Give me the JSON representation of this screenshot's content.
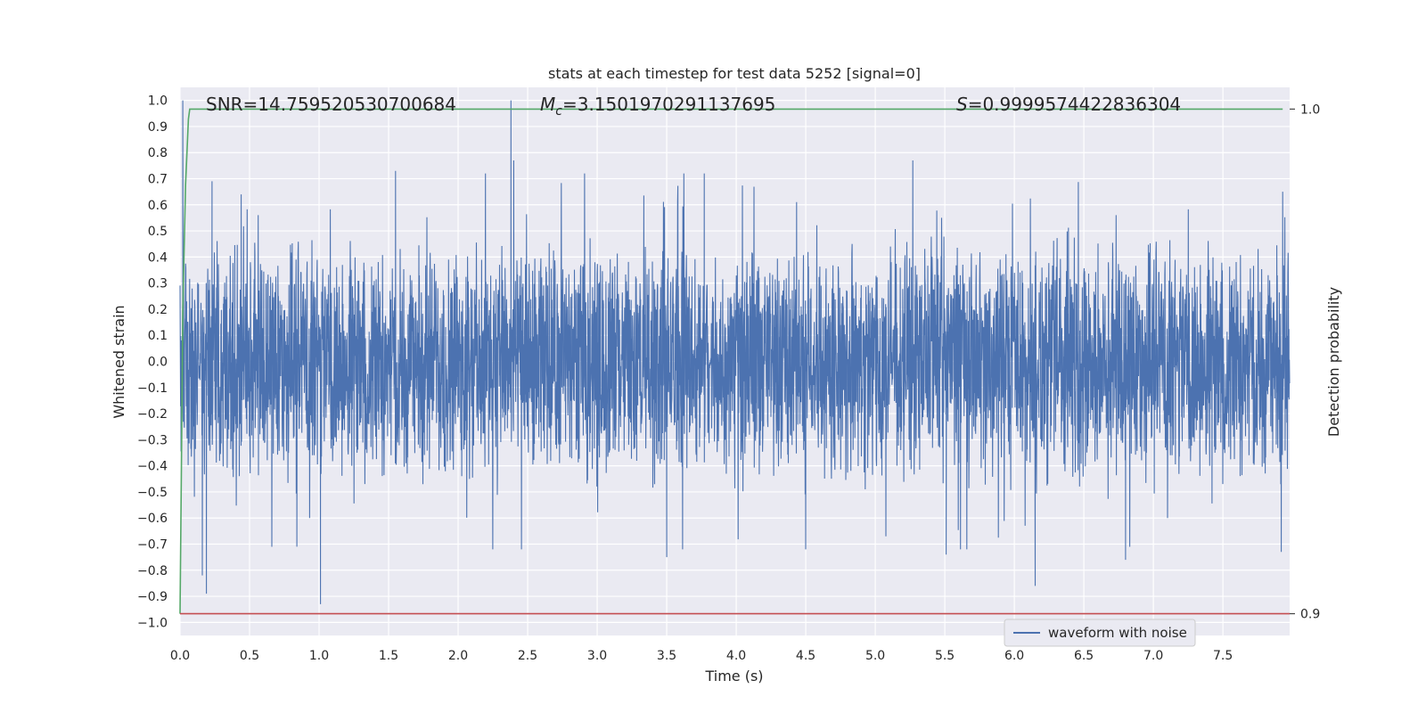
{
  "chart_data": {
    "type": "line",
    "title": "stats at each timestep for test data 5252 [signal=0]",
    "xlabel": "Time (s)",
    "ylabel": "Whitened strain",
    "y2label": "Detection probability",
    "xlim": [
      0.0,
      7.98
    ],
    "ylim": [
      -1.05,
      1.05
    ],
    "y2lim": [
      0.8957,
      1.0043
    ],
    "x_ticks": [
      "0.0",
      "0.5",
      "1.0",
      "1.5",
      "2.0",
      "2.5",
      "3.0",
      "3.5",
      "4.0",
      "4.5",
      "5.0",
      "5.5",
      "6.0",
      "6.5",
      "7.0",
      "7.5"
    ],
    "y_ticks": [
      "1.0",
      "0.9",
      "0.8",
      "0.7",
      "0.6",
      "0.5",
      "0.4",
      "0.3",
      "0.2",
      "0.1",
      "0.0",
      "−0.1",
      "−0.2",
      "−0.3",
      "−0.4",
      "−0.5",
      "−0.6",
      "−0.7",
      "−0.8",
      "−0.9",
      "−1.0"
    ],
    "y2_ticks": [
      "1.0",
      "0.9"
    ],
    "grid": true,
    "annotations": {
      "snr": "SNR=14.759520530700684",
      "mc_symbol": "M",
      "mc_sub": "c",
      "mc_value": "=3.1501970291137695",
      "s_symbol": "S",
      "s_value": "=0.9999574422836304"
    },
    "series": [
      {
        "name": "waveform with noise",
        "color": "#4c72b0",
        "description": "whitened noisy strain, approx. range -0.93 to 1.0",
        "peaks": [
          {
            "x": 0.02,
            "y": 1.0
          },
          {
            "x": 0.23,
            "y": 0.69
          },
          {
            "x": 0.44,
            "y": 0.64
          },
          {
            "x": 1.55,
            "y": 0.73
          },
          {
            "x": 2.38,
            "y": 1.0
          },
          {
            "x": 2.4,
            "y": 0.77
          },
          {
            "x": 3.77,
            "y": 0.72
          },
          {
            "x": 5.27,
            "y": 0.77
          },
          {
            "x": 7.93,
            "y": 0.65
          }
        ],
        "troughs": [
          {
            "x": 0.19,
            "y": -0.89
          },
          {
            "x": 0.16,
            "y": -0.82
          },
          {
            "x": 1.01,
            "y": -0.93
          },
          {
            "x": 0.84,
            "y": -0.71
          },
          {
            "x": 3.5,
            "y": -0.75
          },
          {
            "x": 5.51,
            "y": -0.74
          },
          {
            "x": 6.15,
            "y": -0.86
          },
          {
            "x": 6.8,
            "y": -0.76
          },
          {
            "x": 7.92,
            "y": -0.73
          }
        ]
      },
      {
        "name": "detection probability",
        "color": "#55a868",
        "axis": "right",
        "x": [
          0.0,
          0.01,
          0.02,
          0.04,
          0.06,
          0.07,
          7.93
        ],
        "values": [
          0.9,
          0.93,
          0.96,
          0.985,
          0.998,
          1.0,
          1.0
        ]
      },
      {
        "name": "threshold",
        "color": "#c44e52",
        "axis": "right",
        "x": [
          0.0,
          7.98
        ],
        "values": [
          0.9,
          0.9
        ]
      }
    ],
    "legend": {
      "entries": [
        "waveform with noise"
      ],
      "placement": "lower-right"
    }
  }
}
